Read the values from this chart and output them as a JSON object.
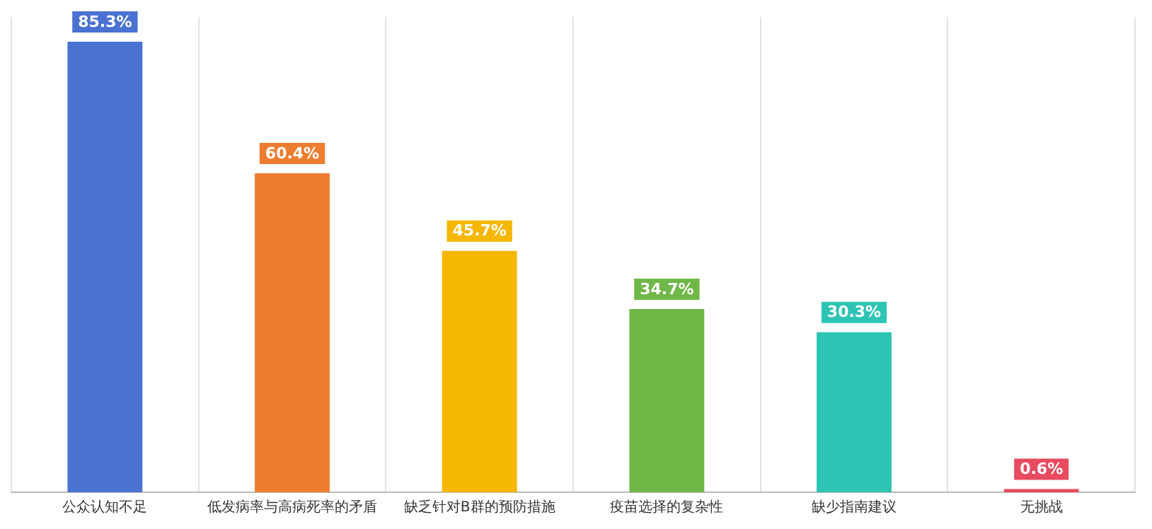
{
  "chart_data": {
    "type": "bar",
    "categories": [
      "公众认知不足",
      "低发病率与高病死率的矛盾",
      "缺乏针对B群的预防措施",
      "疫苗选择的复杂性",
      "缺少指南建议",
      "无挑战"
    ],
    "values": [
      85.3,
      60.4,
      45.7,
      34.7,
      30.3,
      0.6
    ],
    "colors": [
      "#4a72d2",
      "#ee7d30",
      "#f5b700",
      "#6fb746",
      "#2ec4b4",
      "#e84a5f"
    ],
    "value_labels": [
      "85.3%",
      "60.4%",
      "45.7%",
      "34.7%",
      "30.3%",
      "0.6%"
    ],
    "grid": "x",
    "tick_labels": "x"
  }
}
